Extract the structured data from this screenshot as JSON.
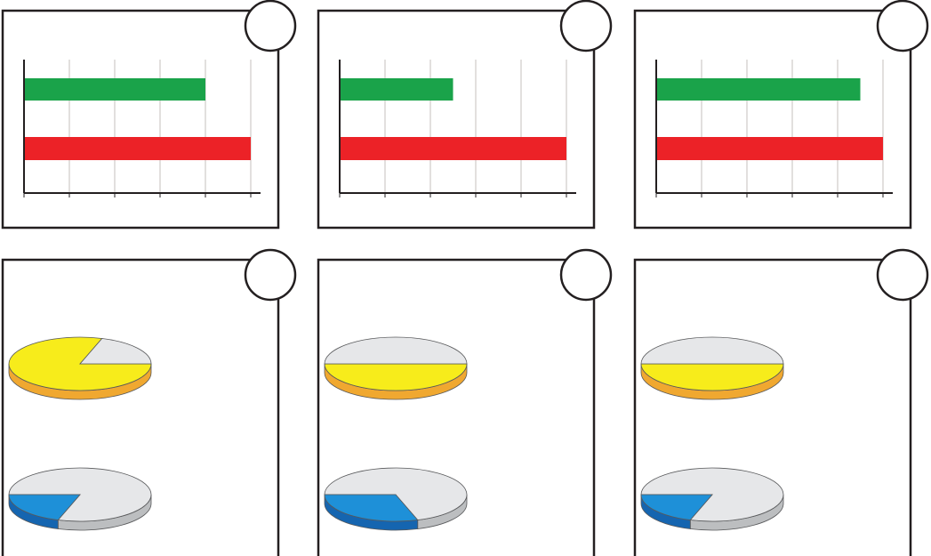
{
  "chart_data": [
    {
      "type": "bar",
      "orientation": "horizontal",
      "categories": [
        null,
        null
      ],
      "values": [
        4,
        5
      ],
      "colors": [
        "#1aa34a",
        "#ec2227"
      ],
      "xlim": [
        0,
        5
      ],
      "xticks": [
        0,
        1,
        2,
        3,
        4,
        5
      ],
      "grid": true
    },
    {
      "type": "bar",
      "orientation": "horizontal",
      "categories": [
        null,
        null
      ],
      "values": [
        2.5,
        5
      ],
      "colors": [
        "#1aa34a",
        "#ec2227"
      ],
      "xlim": [
        0,
        5
      ],
      "xticks": [
        0,
        1,
        2,
        3,
        4,
        5
      ],
      "grid": true
    },
    {
      "type": "bar",
      "orientation": "horizontal",
      "categories": [
        null,
        null
      ],
      "values": [
        4.5,
        5
      ],
      "colors": [
        "#1aa34a",
        "#ec2227"
      ],
      "xlim": [
        0,
        5
      ],
      "xticks": [
        0,
        1,
        2,
        3,
        4,
        5
      ],
      "grid": true
    },
    {
      "type": "pie",
      "pies": [
        {
          "values": [
            80,
            20
          ],
          "colors": [
            "#f7ec1b",
            "#e6e7e9"
          ],
          "side_colors": [
            "#f0a830",
            "#bcbec0"
          ],
          "start_angle": 0
        },
        {
          "values": [
            80,
            20
          ],
          "colors": [
            "#e6e7e9",
            "#1e90d8"
          ],
          "side_colors": [
            "#bcbec0",
            "#1565b0"
          ],
          "start_angle": 180
        }
      ]
    },
    {
      "type": "pie",
      "pies": [
        {
          "values": [
            50,
            50
          ],
          "colors": [
            "#f7ec1b",
            "#e6e7e9"
          ],
          "side_colors": [
            "#f0a830",
            "#bcbec0"
          ],
          "start_angle": 0
        },
        {
          "values": [
            70,
            30
          ],
          "colors": [
            "#e6e7e9",
            "#1e90d8"
          ],
          "side_colors": [
            "#bcbec0",
            "#1565b0"
          ],
          "start_angle": 180
        }
      ]
    },
    {
      "type": "pie",
      "pies": [
        {
          "values": [
            50,
            50
          ],
          "colors": [
            "#f7ec1b",
            "#e6e7e9"
          ],
          "side_colors": [
            "#f0a830",
            "#bcbec0"
          ],
          "start_angle": 0
        },
        {
          "values": [
            80,
            20
          ],
          "colors": [
            "#e6e7e9",
            "#1e90d8"
          ],
          "side_colors": [
            "#bcbec0",
            "#1565b0"
          ],
          "start_angle": 180
        }
      ]
    }
  ]
}
